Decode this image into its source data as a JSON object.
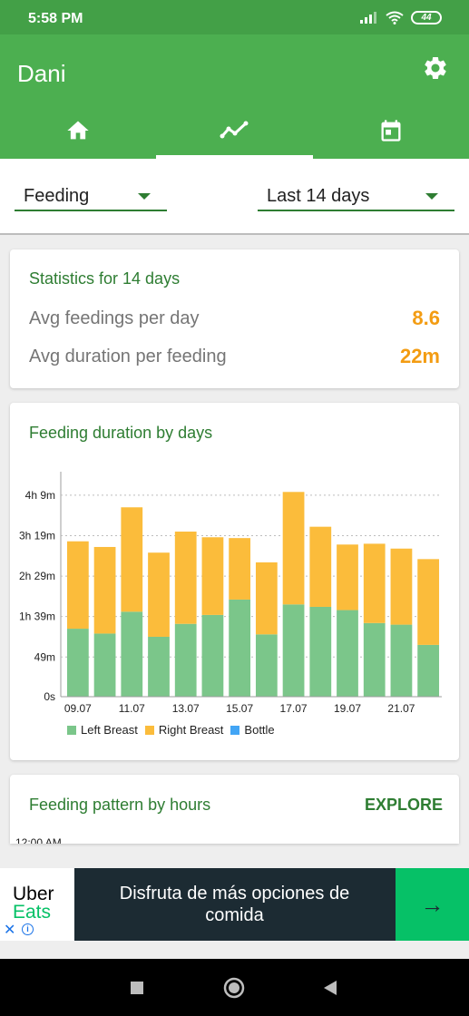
{
  "status_bar": {
    "time": "5:58 PM",
    "battery": "44"
  },
  "app_bar": {
    "title": "Dani",
    "tabs": [
      {
        "name": "home",
        "icon": "home-icon"
      },
      {
        "name": "stats",
        "icon": "trending-icon",
        "active": true
      },
      {
        "name": "calendar",
        "icon": "calendar-icon"
      }
    ]
  },
  "filters": {
    "type": "Feeding",
    "period": "Last 14 days"
  },
  "stats": {
    "title": "Statistics for 14 days",
    "rows": [
      {
        "label": "Avg feedings per day",
        "value": "8.6"
      },
      {
        "label": "Avg duration per feeding",
        "value": "22m"
      }
    ]
  },
  "duration_card": {
    "title": "Feeding duration by days"
  },
  "chart_data": {
    "type": "bar",
    "stacked": true,
    "categories": [
      "09.07",
      "10.07",
      "11.07",
      "12.07",
      "13.07",
      "14.07",
      "15.07",
      "16.07",
      "17.07",
      "18.07",
      "19.07",
      "20.07",
      "21.07",
      "22.07"
    ],
    "x_tick_labels": [
      "09.07",
      "11.07",
      "13.07",
      "15.07",
      "17.07",
      "19.07",
      "21.07"
    ],
    "y_tick_labels": [
      "0s",
      "49m",
      "1h 39m",
      "2h 29m",
      "3h 19m",
      "4h 9m"
    ],
    "y_tick_values_min": [
      0,
      49,
      99,
      149,
      199,
      249
    ],
    "ylim": [
      0,
      278
    ],
    "unit": "minutes",
    "series": [
      {
        "name": "Left Breast",
        "color": "#7bc68a",
        "values": [
          84,
          78,
          105,
          74,
          90,
          101,
          120,
          77,
          114,
          111,
          107,
          91,
          89,
          64
        ]
      },
      {
        "name": "Right Breast",
        "color": "#fbbc3b",
        "values": [
          108,
          107,
          129,
          104,
          114,
          96,
          76,
          89,
          139,
          99,
          81,
          98,
          94,
          106
        ]
      },
      {
        "name": "Bottle",
        "color": "#42a5f5",
        "values": [
          0,
          0,
          0,
          0,
          0,
          0,
          0,
          0,
          0,
          0,
          0,
          0,
          0,
          0
        ]
      }
    ],
    "grid": "horizontal dotted",
    "legend_position": "bottom-left"
  },
  "pattern_card": {
    "title": "Feeding pattern by hours",
    "explore": "EXPLORE",
    "first_label": "12:00 AM"
  },
  "ad": {
    "brand_line1": "Uber",
    "brand_line2": "Eats",
    "text": "Disfruta de más opciones de comida",
    "arrow": "→",
    "close": "✕",
    "info": "i"
  }
}
